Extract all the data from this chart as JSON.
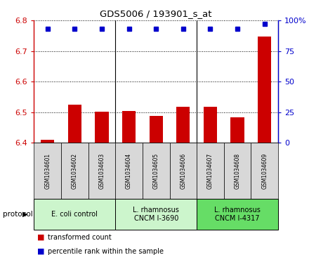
{
  "title": "GDS5006 / 193901_s_at",
  "samples": [
    "GSM1034601",
    "GSM1034602",
    "GSM1034603",
    "GSM1034604",
    "GSM1034605",
    "GSM1034606",
    "GSM1034607",
    "GSM1034608",
    "GSM1034609"
  ],
  "transformed_counts": [
    6.41,
    6.525,
    6.502,
    6.505,
    6.487,
    6.517,
    6.517,
    6.484,
    6.748
  ],
  "percentile_ranks": [
    93,
    93,
    93,
    93,
    93,
    93,
    93,
    93,
    97
  ],
  "ylim_left": [
    6.4,
    6.8
  ],
  "ylim_right": [
    0,
    100
  ],
  "yticks_left": [
    6.4,
    6.5,
    6.6,
    6.7,
    6.8
  ],
  "yticks_right": [
    0,
    25,
    50,
    75,
    100
  ],
  "bar_color": "#cc0000",
  "dot_color": "#0000cc",
  "legend_red_label": "transformed count",
  "legend_blue_label": "percentile rank within the sample",
  "plot_bg_color": "#ffffff",
  "sample_box_color": "#d8d8d8",
  "group1_color": "#ccf5cc",
  "group2_color": "#66dd66",
  "group1_label": "E. coli control",
  "group2_label": "L. rhamnosus\nCNCM I-3690",
  "group3_label": "L. rhamnosus\nCNCM I-4317"
}
